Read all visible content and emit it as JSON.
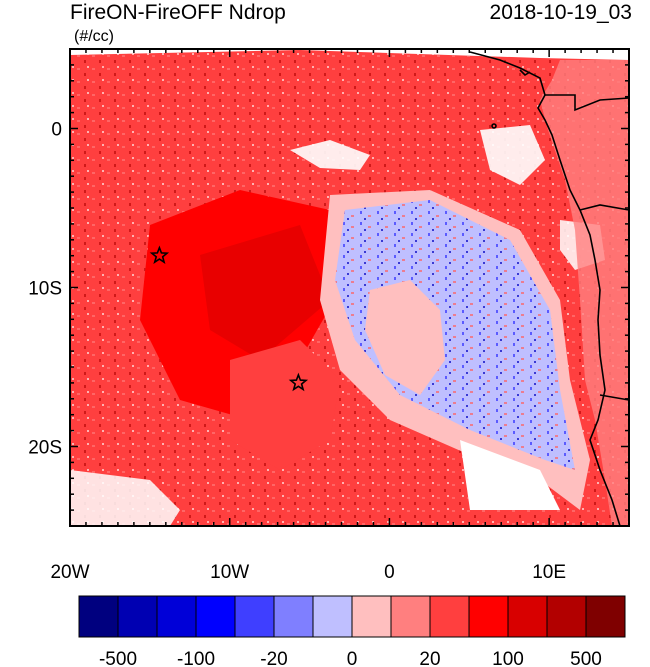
{
  "header": {
    "title": "FireON-FireOFF Ndrop",
    "date": "2018-10-19_03",
    "units": "(#/cc)"
  },
  "chart_data": {
    "type": "heatmap",
    "title": "FireON-FireOFF Ndrop",
    "subtitle": "2018-10-19_03",
    "units": "(#/cc)",
    "x_axis": {
      "label": "",
      "range": [
        -20,
        15
      ],
      "ticks": [
        -20,
        -10,
        0,
        10
      ],
      "tick_labels": [
        "20W",
        "10W",
        "0",
        "10E"
      ]
    },
    "y_axis": {
      "label": "",
      "range": [
        -25,
        5
      ],
      "ticks": [
        0,
        -10,
        -20
      ],
      "tick_labels": [
        "0",
        "10S",
        "20S"
      ]
    },
    "markers": [
      {
        "name": "star-west",
        "lon": -14.4,
        "lat": -8.0
      },
      {
        "name": "star-south",
        "lon": -5.7,
        "lat": -16.0
      }
    ],
    "colorbar": {
      "colors": [
        "#00007f",
        "#0000b2",
        "#0000d8",
        "#0000ff",
        "#3f3fff",
        "#7f7fff",
        "#bfbfff",
        "#ffbfbf",
        "#ff7f7f",
        "#ff3f3f",
        "#ff0000",
        "#d80000",
        "#b20000",
        "#7f0000"
      ],
      "labels": [
        "-500",
        "-100",
        "-20",
        "0",
        "20",
        "100",
        "500"
      ]
    }
  }
}
